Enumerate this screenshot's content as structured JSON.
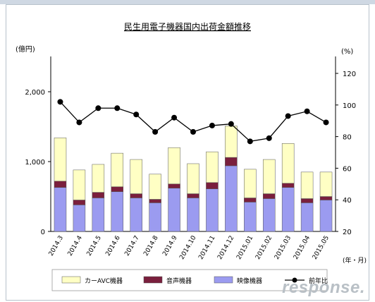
{
  "watermark": "response.",
  "chart_data": {
    "type": "bar",
    "title": "民生用電子機器国内出荷金額推移",
    "y_unit_left": "(億円)",
    "y_unit_right": "(%)",
    "x_unit": "(年・月)",
    "categories": [
      "2014.3",
      "2014.4",
      "2014.5",
      "2014.6",
      "2014.7",
      "2014.8",
      "2014.9",
      "2014.10",
      "2014.11",
      "2014.12",
      "2015.01",
      "2015.02",
      "2015.03",
      "2015.04",
      "2015.05"
    ],
    "y_left_ticks": [
      "0",
      "1,000",
      "2,000"
    ],
    "y_left_range": [
      0,
      2000
    ],
    "y_right_ticks": [
      "20",
      "40",
      "60",
      "80",
      "100",
      "120"
    ],
    "y_right_range": [
      20,
      120
    ],
    "stacked": true,
    "series": [
      {
        "name": "映像機器",
        "color": "#9b9bf0",
        "values": [
          630,
          380,
          480,
          570,
          480,
          410,
          620,
          480,
          610,
          940,
          420,
          470,
          630,
          410,
          450
        ]
      },
      {
        "name": "音声機器",
        "color": "#7a1f3d",
        "values": [
          90,
          70,
          80,
          70,
          60,
          50,
          60,
          60,
          90,
          120,
          60,
          70,
          60,
          60,
          50
        ]
      },
      {
        "name": "カーAVC機器",
        "color": "#ffffc4",
        "values": [
          620,
          430,
          400,
          480,
          490,
          360,
          520,
          430,
          440,
          450,
          410,
          490,
          570,
          380,
          350
        ]
      }
    ],
    "line": {
      "name": "前年比",
      "color": "#000000",
      "values": [
        102,
        89,
        98,
        98,
        94,
        83,
        92,
        83,
        87,
        88,
        77,
        79,
        93,
        96,
        89
      ]
    },
    "legend_position": "bottom"
  }
}
